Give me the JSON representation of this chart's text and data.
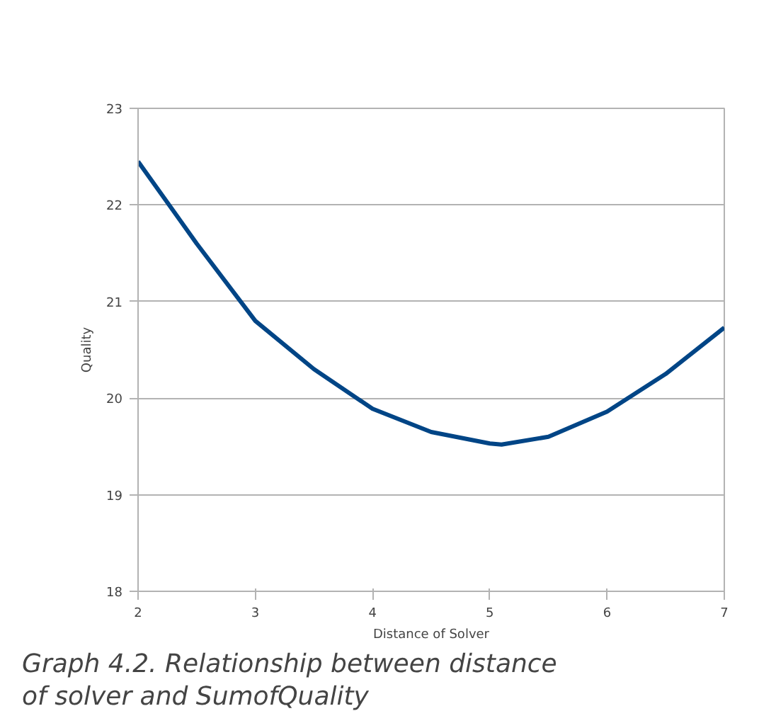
{
  "chart_data": {
    "type": "line",
    "xlabel": "Distance of Solver",
    "ylabel": "Quality",
    "x": [
      2,
      2.5,
      3,
      3.5,
      4,
      4.5,
      5,
      5.1,
      5.5,
      6,
      6.5,
      7
    ],
    "series": [
      {
        "color": "#004586",
        "values": [
          22.45,
          21.6,
          20.8,
          20.3,
          19.89,
          19.65,
          19.53,
          19.52,
          19.6,
          19.86,
          20.25,
          20.73
        ]
      }
    ],
    "xlim": [
      2,
      7
    ],
    "ylim": [
      18,
      23
    ],
    "xticks": [
      2,
      3,
      4,
      5,
      6,
      7
    ],
    "yticks": [
      18,
      19,
      20,
      21,
      22,
      23
    ],
    "grid": "y",
    "marker": "none",
    "line_style": "solid",
    "annotations": [
      "Graph 4.2. Relationship between distance of solver and SumofQuality"
    ]
  }
}
